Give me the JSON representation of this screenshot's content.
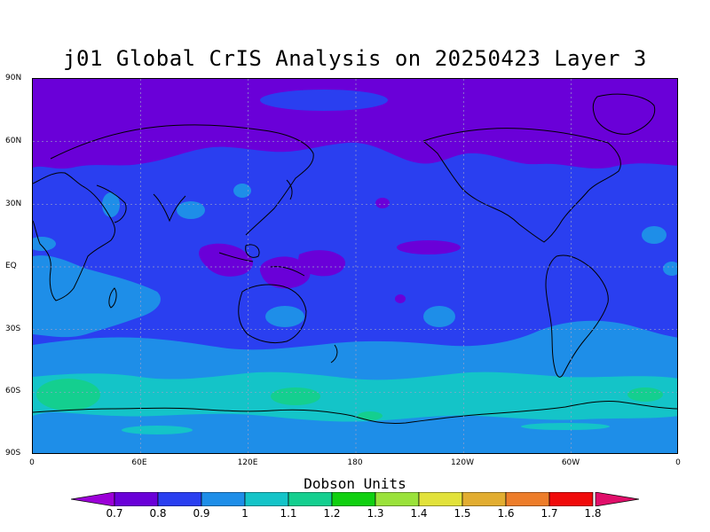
{
  "title": "j01 Global CrIS Analysis on 20250423 Layer 3",
  "map": {
    "projection": "cylindrical equidistant",
    "lat_labels": [
      "90N",
      "60N",
      "30N",
      "EQ",
      "30S",
      "60S",
      "90S"
    ],
    "lon_labels": [
      "0",
      "60E",
      "120E",
      "180",
      "120W",
      "60W",
      "0"
    ],
    "gridlines": "dotted",
    "coastlines": true,
    "base_value": 0.8,
    "regions": [
      {
        "area": "northern polar cap (north of ~50N)",
        "value": 0.7
      },
      {
        "area": "tropics and mid-latitudes",
        "value": 0.8
      },
      {
        "area": "southern mid-latitude belt (30S–50S)",
        "value": 0.9
      },
      {
        "area": "Southern Ocean around 60S",
        "value": 1.1
      },
      {
        "area": "Maritime Continent / tropical west Pacific",
        "value": 0.7
      },
      {
        "area": "Antarctica",
        "value": 0.9
      }
    ]
  },
  "colorbar": {
    "title": "Dobson Units",
    "ticks": [
      "0.7",
      "0.8",
      "0.9",
      "1",
      "1.1",
      "1.2",
      "1.3",
      "1.4",
      "1.5",
      "1.6",
      "1.7",
      "1.8"
    ],
    "colors": [
      "#9c00d8",
      "#6a00d8",
      "#2a3ff0",
      "#1e8ee8",
      "#14c4c8",
      "#14cf8f",
      "#10d010",
      "#9ae23a",
      "#e2e23a",
      "#e2ad30",
      "#ed7d2a",
      "#f00a0a",
      "#e00f6a"
    ]
  }
}
